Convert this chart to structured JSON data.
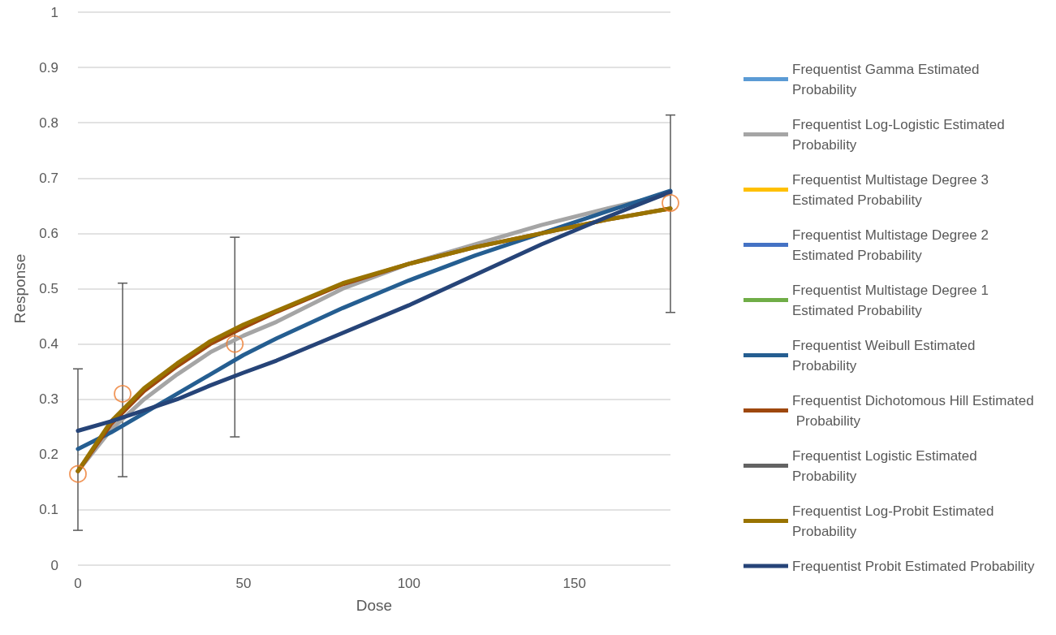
{
  "chart_data": {
    "type": "line",
    "xlabel": "Dose",
    "ylabel": "Response",
    "xlim": [
      0,
      179
    ],
    "xticks": [
      0,
      50,
      100,
      150
    ],
    "ylim": [
      0,
      1
    ],
    "yticks": [
      0,
      0.1,
      0.2,
      0.3,
      0.4,
      0.5,
      0.6,
      0.7,
      0.8,
      0.9,
      1
    ],
    "grid": "y",
    "legend": "right",
    "marker": "none",
    "line_style": "solid",
    "x": [
      0,
      10,
      20,
      30,
      40,
      50,
      60,
      80,
      100,
      120,
      140,
      160,
      179
    ],
    "series": [
      {
        "name": "Frequentist Gamma Estimated Probability",
        "color": "#5b9bd5",
        "values": [
          null,
          null,
          null,
          null,
          null,
          null,
          null,
          null,
          null,
          null,
          null,
          null,
          null
        ]
      },
      {
        "name": "Frequentist Log-Logistic Estimated Probability",
        "color": "#a5a5a5",
        "values": [
          0.17,
          0.245,
          0.3,
          0.345,
          0.385,
          0.415,
          0.44,
          0.5,
          0.545,
          0.58,
          0.615,
          0.645,
          0.672
        ]
      },
      {
        "name": "Frequentist Multistage Degree 3 Estimated Probability",
        "color": "#ffc000",
        "values": [
          null,
          null,
          null,
          null,
          null,
          null,
          null,
          null,
          null,
          null,
          null,
          null,
          null
        ]
      },
      {
        "name": "Frequentist Multistage Degree 2 Estimated Probability",
        "color": "#4472c4",
        "values": [
          null,
          null,
          null,
          null,
          null,
          null,
          null,
          null,
          null,
          null,
          null,
          null,
          null
        ]
      },
      {
        "name": "Frequentist Multistage Degree 1 Estimated Probability",
        "color": "#70ad47",
        "values": [
          null,
          null,
          null,
          null,
          null,
          null,
          null,
          null,
          null,
          null,
          null,
          null,
          null
        ]
      },
      {
        "name": "Frequentist Weibull Estimated Probability",
        "color": "#255e91",
        "values": [
          0.21,
          0.24,
          0.275,
          0.31,
          0.345,
          0.38,
          0.41,
          0.465,
          0.515,
          0.56,
          0.6,
          0.64,
          0.677
        ]
      },
      {
        "name": "Frequentist Dichotomous Hill Estimated Probability",
        "color": "#9e480e",
        "values": [
          0.17,
          0.255,
          0.315,
          0.36,
          0.4,
          0.43,
          0.458,
          0.508,
          0.545,
          0.575,
          0.6,
          0.625,
          0.645
        ]
      },
      {
        "name": "Frequentist Logistic Estimated Probability",
        "color": "#636363",
        "values": [
          null,
          null,
          null,
          null,
          null,
          null,
          null,
          null,
          null,
          null,
          null,
          null,
          null
        ]
      },
      {
        "name": "Frequentist Log-Probit Estimated Probability",
        "color": "#997300",
        "values": [
          0.17,
          0.26,
          0.32,
          0.365,
          0.405,
          0.435,
          0.46,
          0.51,
          0.545,
          0.575,
          0.6,
          0.625,
          0.645
        ]
      },
      {
        "name": "Frequentist Probit Estimated Probability",
        "color": "#264478",
        "values": [
          0.243,
          0.26,
          0.28,
          0.3,
          0.325,
          0.348,
          0.37,
          0.42,
          0.47,
          0.525,
          0.58,
          0.63,
          0.675
        ]
      },
      {
        "type": "scatter",
        "color": "#ed7d31",
        "marker": "circle",
        "x": [
          0,
          13.5,
          47.4,
          179
        ],
        "values": [
          0.165,
          0.31,
          0.4,
          0.655
        ],
        "errors": [
          [
            0.063,
            0.355
          ],
          [
            0.16,
            0.51
          ],
          [
            0.232,
            0.593
          ],
          [
            0.457,
            0.814
          ]
        ]
      }
    ]
  }
}
